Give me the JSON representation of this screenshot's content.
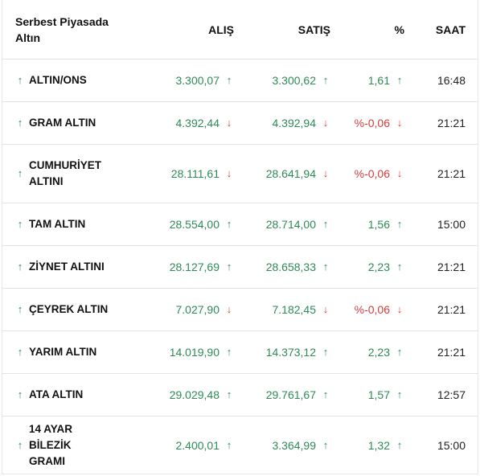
{
  "header": {
    "name": "Serbest Piyasada Altın",
    "buy": "ALIŞ",
    "sell": "SATIŞ",
    "pct": "%",
    "time": "SAAT"
  },
  "colors": {
    "up": "#2e8b57",
    "down": "#d63c3c"
  },
  "rows": [
    {
      "name": "ALTIN/ONS",
      "trend": "up",
      "buy": "3.300,07",
      "buy_dir": "up",
      "sell": "3.300,62",
      "sell_dir": "up",
      "pct": "1,61",
      "pct_dir": "up",
      "time": "16:48"
    },
    {
      "name": "GRAM ALTIN",
      "trend": "up",
      "buy": "4.392,44",
      "buy_dir": "down",
      "sell": "4.392,94",
      "sell_dir": "down",
      "pct": "%-0,06",
      "pct_dir": "down",
      "time": "21:21"
    },
    {
      "name": "CUMHURİYET ALTINI",
      "trend": "up",
      "buy": "28.111,61",
      "buy_dir": "down",
      "sell": "28.641,94",
      "sell_dir": "down",
      "pct": "%-0,06",
      "pct_dir": "down",
      "time": "21:21"
    },
    {
      "name": "TAM ALTIN",
      "trend": "up",
      "buy": "28.554,00",
      "buy_dir": "up",
      "sell": "28.714,00",
      "sell_dir": "up",
      "pct": "1,56",
      "pct_dir": "up",
      "time": "15:00"
    },
    {
      "name": "ZİYNET ALTINI",
      "trend": "up",
      "buy": "28.127,69",
      "buy_dir": "up",
      "sell": "28.658,33",
      "sell_dir": "up",
      "pct": "2,23",
      "pct_dir": "up",
      "time": "21:21"
    },
    {
      "name": "ÇEYREK ALTIN",
      "trend": "up",
      "buy": "7.027,90",
      "buy_dir": "down",
      "sell": "7.182,45",
      "sell_dir": "down",
      "pct": "%-0,06",
      "pct_dir": "down",
      "time": "21:21"
    },
    {
      "name": "YARIM ALTIN",
      "trend": "up",
      "buy": "14.019,90",
      "buy_dir": "up",
      "sell": "14.373,12",
      "sell_dir": "up",
      "pct": "2,23",
      "pct_dir": "up",
      "time": "21:21"
    },
    {
      "name": "ATA ALTIN",
      "trend": "up",
      "buy": "29.029,48",
      "buy_dir": "up",
      "sell": "29.761,67",
      "sell_dir": "up",
      "pct": "1,57",
      "pct_dir": "up",
      "time": "12:57"
    },
    {
      "name": "14 AYAR BİLEZİK GRAMI",
      "trend": "up",
      "buy": "2.400,01",
      "buy_dir": "up",
      "sell": "3.364,99",
      "sell_dir": "up",
      "pct": "1,32",
      "pct_dir": "up",
      "time": "15:00"
    }
  ]
}
